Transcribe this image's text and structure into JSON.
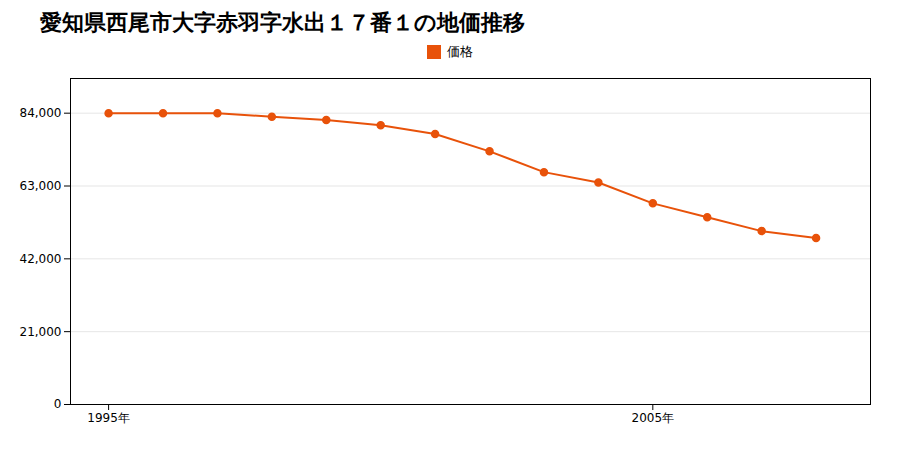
{
  "chart_data": {
    "type": "line",
    "title": "愛知県西尾市大字赤羽字水出１７番１の地価推移",
    "x": [
      1995,
      1996,
      1997,
      1998,
      1999,
      2000,
      2001,
      2002,
      2003,
      2004,
      2005,
      2006,
      2007,
      2008
    ],
    "series": [
      {
        "name": "価格",
        "color": "#e8520a",
        "marker": "circle",
        "values": [
          84000,
          84000,
          84000,
          83000,
          82000,
          80500,
          78000,
          73000,
          67000,
          64000,
          58000,
          54000,
          50000,
          48000
        ]
      }
    ],
    "xlim": [
      1994.3,
      2009.0
    ],
    "xticks": [
      {
        "value": 1995,
        "label": "1995年"
      },
      {
        "value": 2005,
        "label": "2005年"
      }
    ],
    "ylim": [
      0,
      94000
    ],
    "yticks": [
      0,
      {
        "value": 21000,
        "label": "21,000"
      },
      {
        "value": 42000,
        "label": "42,000"
      },
      {
        "value": 63000,
        "label": "63,000"
      },
      {
        "value": 84000,
        "label": "84,000"
      }
    ],
    "grid": true,
    "legend": "top"
  }
}
